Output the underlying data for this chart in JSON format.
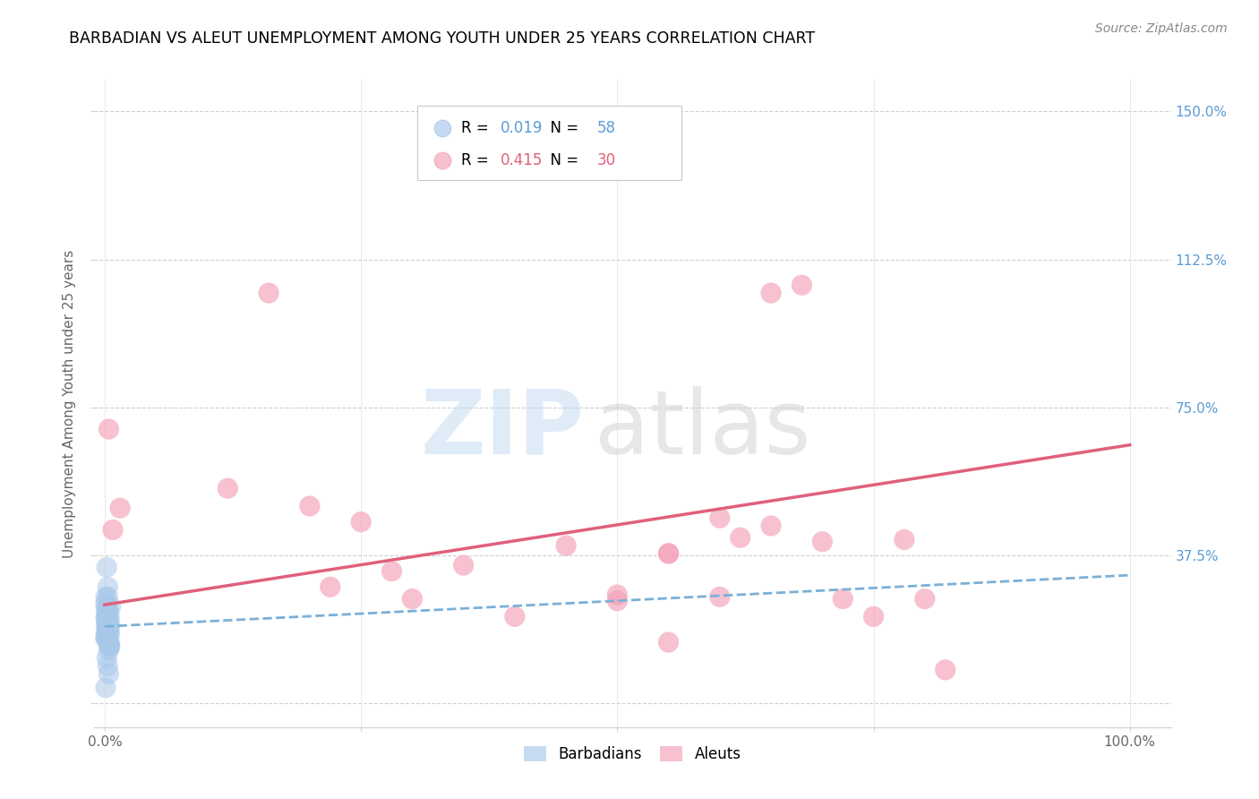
{
  "title": "BARBADIAN VS ALEUT UNEMPLOYMENT AMONG YOUTH UNDER 25 YEARS CORRELATION CHART",
  "source": "Source: ZipAtlas.com",
  "ylabel": "Unemployment Among Youth under 25 years",
  "xlim": [
    -0.01,
    1.04
  ],
  "ylim": [
    -0.06,
    1.58
  ],
  "ytick_positions": [
    0.0,
    0.375,
    0.75,
    1.125,
    1.5
  ],
  "yticklabels": [
    "",
    "37.5%",
    "75.0%",
    "112.5%",
    "150.0%"
  ],
  "xtick_positions": [
    0.0,
    1.0
  ],
  "xticklabels": [
    "0.0%",
    "100.0%"
  ],
  "barbadian_R": "0.019",
  "barbadian_N": "58",
  "aleut_R": "0.415",
  "aleut_N": "30",
  "barbadian_color": "#a8c8ea",
  "aleut_color": "#f4a0b8",
  "barbadian_line_color": "#7ab0d8",
  "aleut_line_color": "#e0607a",
  "ytick_color": "#5b9bd5",
  "aleut_tick_color": "#e0607a",
  "barbadian_x": [
    0.002,
    0.003,
    0.004,
    0.003,
    0.002,
    0.004,
    0.005,
    0.003,
    0.002,
    0.004,
    0.005,
    0.003,
    0.002,
    0.004,
    0.003,
    0.002,
    0.001,
    0.005,
    0.003,
    0.002,
    0.004,
    0.002,
    0.003,
    0.001,
    0.005,
    0.003,
    0.002,
    0.004,
    0.001,
    0.003,
    0.002,
    0.001,
    0.004,
    0.003,
    0.002,
    0.001,
    0.003,
    0.002,
    0.004,
    0.003,
    0.002,
    0.001,
    0.003,
    0.002,
    0.004,
    0.003,
    0.002,
    0.001,
    0.003,
    0.002,
    0.002,
    0.003,
    0.004,
    0.005,
    0.001,
    0.005,
    0.006,
    0.003
  ],
  "barbadian_y": [
    0.345,
    0.27,
    0.23,
    0.21,
    0.195,
    0.18,
    0.215,
    0.245,
    0.18,
    0.195,
    0.15,
    0.215,
    0.185,
    0.205,
    0.165,
    0.225,
    0.245,
    0.175,
    0.195,
    0.215,
    0.185,
    0.205,
    0.165,
    0.27,
    0.145,
    0.185,
    0.205,
    0.155,
    0.215,
    0.235,
    0.195,
    0.175,
    0.145,
    0.205,
    0.225,
    0.165,
    0.185,
    0.215,
    0.155,
    0.195,
    0.235,
    0.255,
    0.175,
    0.195,
    0.135,
    0.205,
    0.225,
    0.165,
    0.185,
    0.215,
    0.115,
    0.095,
    0.075,
    0.195,
    0.04,
    0.145,
    0.245,
    0.295
  ],
  "aleut_x": [
    0.004,
    0.008,
    0.015,
    0.12,
    0.16,
    0.2,
    0.22,
    0.5,
    0.55,
    0.6,
    0.62,
    0.65,
    0.68,
    0.7,
    0.72,
    0.75,
    0.78,
    0.8,
    0.82,
    0.55,
    0.25,
    0.28,
    0.3,
    0.35,
    0.4,
    0.45,
    0.5,
    0.55,
    0.6,
    0.65
  ],
  "aleut_y": [
    0.695,
    0.44,
    0.495,
    0.545,
    1.04,
    0.5,
    0.295,
    0.26,
    0.38,
    0.47,
    0.42,
    1.04,
    1.06,
    0.41,
    0.265,
    0.22,
    0.415,
    0.265,
    0.085,
    0.155,
    0.46,
    0.335,
    0.265,
    0.35,
    0.22,
    0.4,
    0.275,
    0.38,
    0.27,
    0.45
  ]
}
